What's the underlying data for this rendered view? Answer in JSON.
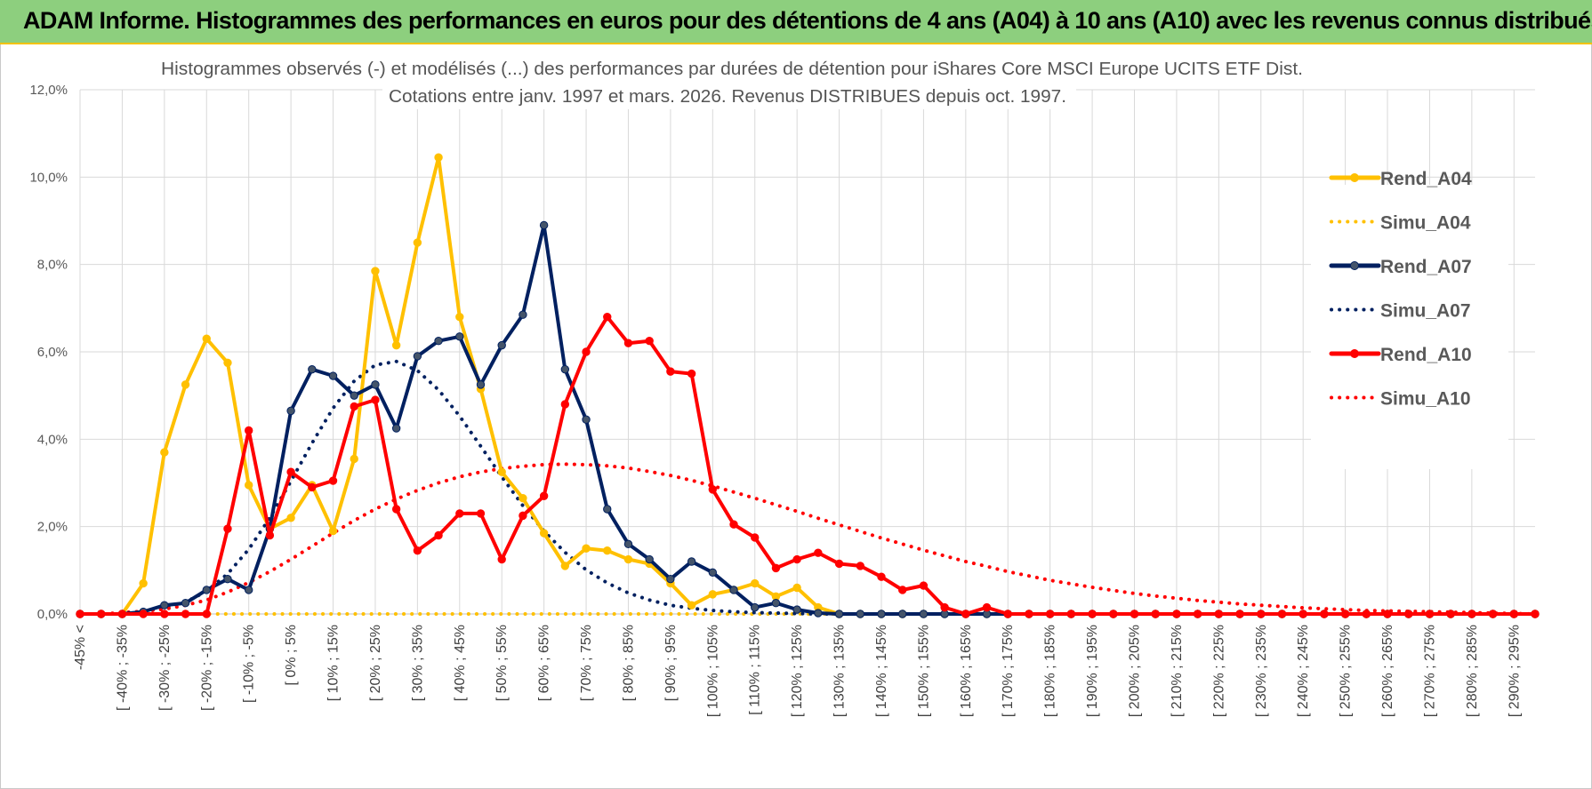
{
  "header": {
    "title": "ADAM Informe. Histogrammes des performances en euros pour des détentions de 4 ans (A04) à 10 ans (A10) avec les revenus connus distribués"
  },
  "chart_data": {
    "type": "line",
    "title": "Histogrammes observés (-) et modélisés (...) des performances par durées de détention pour iShares Core MSCI Europe UCITS ETF Dist.",
    "subtitle": "Cotations entre janv. 1997 et mars. 2026. Revenus DISTRIBUES depuis oct. 1997.",
    "xlabel": "",
    "ylabel": "",
    "ylim": [
      0,
      12
    ],
    "y_ticks": [
      "0,0%",
      "2,0%",
      "4,0%",
      "6,0%",
      "8,0%",
      "10,0%",
      "12,0%"
    ],
    "legend_position": "right",
    "categories": [
      "-45% <",
      "[ -45% ; -40%",
      "[ -40% ; -35%",
      "[ -35% ; -30%",
      "[ -30% ; -25%",
      "[ -25% ; -20%",
      "[ -20% ; -15%",
      "[ -15% ; -10%",
      "[ -10% ; -5%",
      "[ -5% ; 0%",
      "[ 0% ; 5%",
      "[ 5% ; 10%",
      "[ 10% ; 15%",
      "[ 15% ; 20%",
      "[ 20% ; 25%",
      "[ 25% ; 30%",
      "[ 30% ; 35%",
      "[ 35% ; 40%",
      "[ 40% ; 45%",
      "[ 45% ; 50%",
      "[ 50% ; 55%",
      "[ 55% ; 60%",
      "[ 60% ; 65%",
      "[ 65% ; 70%",
      "[ 70% ; 75%",
      "[ 75% ; 80%",
      "[ 80% ; 85%",
      "[ 85% ; 90%",
      "[ 90% ; 95%",
      "[ 95% ; 100%",
      "[ 100% ; 105%",
      "[ 105% ; 110%",
      "[ 110% ; 115%",
      "[ 115% ; 120%",
      "[ 120% ; 125%",
      "[ 125% ; 130%",
      "[ 130% ; 135%",
      "[ 135% ; 140%",
      "[ 140% ; 145%",
      "[ 145% ; 150%",
      "[ 150% ; 155%",
      "[ 155% ; 160%",
      "[ 160% ; 165%",
      "[ 165% ; 170%",
      "[ 170% ; 175%",
      "[ 175% ; 180%",
      "[ 180% ; 185%",
      "[ 185% ; 190%",
      "[ 190% ; 195%",
      "[ 195% ; 200%",
      "[ 200% ; 205%",
      "[ 205% ; 210%",
      "[ 210% ; 215%",
      "[ 215% ; 220%",
      "[ 220% ; 225%",
      "[ 225% ; 230%",
      "[ 230% ; 235%",
      "[ 235% ; 240%",
      "[ 240% ; 245%",
      "[ 245% ; 250%",
      "[ 250% ; 255%",
      "[ 255% ; 260%",
      "[ 260% ; 265%",
      "[ 265% ; 270%",
      "[ 270% ; 275%",
      "[ 275% ; 280%",
      "[ 280% ; 285%",
      "[ 285% ; 290%",
      "[ 290% ; 295%",
      "[ 295% ; 300%"
    ],
    "x_labels_shown": [
      "-45% <",
      "[ -40% ; -35%",
      "[ -30% ; -25%",
      "[ -20% ; -15%",
      "[ -10% ; -5%",
      "[ 0% ; 5%",
      "[ 10% ; 15%",
      "[ 20% ; 25%",
      "[ 30% ; 35%",
      "[ 40% ; 45%",
      "[ 50% ; 55%",
      "[ 60% ; 65%",
      "[ 70% ; 75%",
      "[ 80% ; 85%",
      "[ 90% ; 95%",
      "[ 100% ; 105%",
      "[ 110% ; 115%",
      "[ 120% ; 125%",
      "[ 130% ; 135%",
      "[ 140% ; 145%",
      "[ 150% ; 155%",
      "[ 160% ; 165%",
      "[ 170% ; 175%",
      "[ 180% ; 185%",
      "[ 190% ; 195%",
      "[ 200% ; 205%",
      "[ 210% ; 215%",
      "[ 220% ; 225%",
      "[ 230% ; 235%",
      "[ 240% ; 245%",
      "[ 250% ; 255%",
      "[ 260% ; 265%",
      "[ 270% ; 275%",
      "[ 280% ; 285%",
      "[ 290% ; 295%"
    ],
    "series": [
      {
        "name": "Rend_A04",
        "color": "#ffc000",
        "style": "solid",
        "markers": true,
        "values": [
          0,
          0,
          0,
          0.7,
          3.7,
          5.25,
          6.3,
          5.75,
          2.95,
          1.95,
          2.2,
          2.95,
          1.9,
          3.55,
          7.85,
          6.15,
          8.5,
          10.45,
          6.8,
          5.15,
          3.25,
          2.65,
          1.85,
          1.1,
          1.5,
          1.45,
          1.25,
          1.15,
          0.7,
          0.2,
          0.45,
          0.55,
          0.7,
          0.4,
          0.6,
          0.15,
          0,
          0,
          0,
          0,
          0,
          0,
          0,
          0,
          0,
          0,
          0,
          0,
          0,
          0,
          0,
          0,
          0,
          0,
          0,
          0,
          0,
          0,
          0,
          0,
          0,
          0,
          0,
          0,
          0,
          0,
          0,
          0,
          0,
          0
        ]
      },
      {
        "name": "Simu_A04",
        "color": "#ffc000",
        "style": "dotted",
        "markers": false,
        "values": [
          0,
          0,
          0,
          0,
          0,
          0,
          0,
          0,
          0,
          0,
          0,
          0,
          0,
          0,
          0,
          0,
          0,
          0,
          0,
          0,
          0,
          0,
          0,
          0,
          0,
          0,
          0,
          0,
          0,
          0,
          0,
          0,
          0,
          0,
          0,
          0,
          0,
          0,
          0,
          0,
          0,
          0,
          0,
          0,
          0,
          0,
          0,
          0,
          0,
          0,
          0,
          0,
          0,
          0,
          0,
          0,
          0,
          0,
          0,
          0,
          0,
          0,
          0,
          0,
          0,
          0,
          0,
          0,
          0,
          0
        ]
      },
      {
        "name": "Rend_A07",
        "color": "#002060",
        "style": "solid",
        "markers": true,
        "values": [
          0,
          0,
          0,
          0.05,
          0.2,
          0.25,
          0.55,
          0.8,
          0.55,
          1.95,
          4.65,
          5.6,
          5.45,
          5.0,
          5.25,
          4.25,
          5.9,
          6.25,
          6.35,
          5.25,
          6.15,
          6.85,
          8.9,
          5.6,
          4.45,
          2.4,
          1.6,
          1.25,
          0.8,
          1.2,
          0.95,
          0.55,
          0.15,
          0.25,
          0.1,
          0.02,
          0,
          0,
          0,
          0,
          0,
          0,
          0,
          0,
          0,
          0,
          0,
          0,
          0,
          0,
          0,
          0,
          0,
          0,
          0,
          0,
          0,
          0,
          0,
          0,
          0,
          0,
          0,
          0,
          0,
          0,
          0,
          0,
          0,
          0
        ]
      },
      {
        "name": "Simu_A07",
        "color": "#002060",
        "style": "dotted",
        "markers": false,
        "values": [
          0,
          0,
          0.02,
          0.06,
          0.13,
          0.27,
          0.52,
          0.92,
          1.48,
          2.2,
          3.04,
          3.91,
          4.71,
          5.33,
          5.7,
          5.78,
          5.57,
          5.13,
          4.53,
          3.84,
          3.14,
          2.48,
          1.9,
          1.41,
          1.01,
          0.71,
          0.48,
          0.32,
          0.2,
          0.13,
          0.08,
          0.05,
          0.03,
          0.02,
          0.01,
          0,
          0,
          0,
          0,
          0,
          0,
          0,
          0,
          0,
          0,
          0,
          0,
          0,
          0,
          0,
          0,
          0,
          0,
          0,
          0,
          0,
          0,
          0,
          0,
          0,
          0,
          0,
          0,
          0,
          0,
          0,
          0,
          0,
          0,
          0
        ]
      },
      {
        "name": "Rend_A10",
        "color": "#ff0000",
        "style": "solid",
        "markers": true,
        "values": [
          0,
          0,
          0,
          0,
          0,
          0,
          0,
          1.95,
          4.2,
          1.8,
          3.25,
          2.9,
          3.05,
          4.75,
          4.9,
          2.4,
          1.45,
          1.8,
          2.3,
          2.3,
          1.25,
          2.25,
          2.7,
          4.8,
          6.0,
          6.8,
          6.2,
          6.25,
          5.55,
          5.5,
          2.85,
          2.05,
          1.75,
          1.05,
          1.25,
          1.4,
          1.15,
          1.1,
          0.85,
          0.55,
          0.65,
          0.15,
          0,
          0.15,
          0,
          0,
          0,
          0,
          0,
          0,
          0,
          0,
          0,
          0,
          0,
          0,
          0,
          0,
          0,
          0,
          0,
          0,
          0,
          0,
          0,
          0,
          0,
          0,
          0,
          0
        ]
      },
      {
        "name": "Simu_A10",
        "color": "#ff0000",
        "style": "dotted",
        "markers": false,
        "values": [
          0,
          0,
          0.03,
          0.06,
          0.11,
          0.2,
          0.32,
          0.5,
          0.72,
          0.97,
          1.25,
          1.55,
          1.85,
          2.14,
          2.4,
          2.63,
          2.83,
          3.0,
          3.14,
          3.25,
          3.33,
          3.38,
          3.42,
          3.43,
          3.42,
          3.39,
          3.34,
          3.26,
          3.17,
          3.06,
          2.93,
          2.79,
          2.65,
          2.5,
          2.35,
          2.19,
          2.04,
          1.89,
          1.74,
          1.6,
          1.46,
          1.33,
          1.2,
          1.09,
          0.97,
          0.87,
          0.77,
          0.69,
          0.61,
          0.54,
          0.47,
          0.41,
          0.36,
          0.31,
          0.27,
          0.23,
          0.2,
          0.17,
          0.14,
          0.12,
          0.1,
          0.08,
          0.07,
          0.06,
          0.05,
          0.04,
          0.03,
          0.02,
          0.01,
          0
        ]
      }
    ]
  }
}
